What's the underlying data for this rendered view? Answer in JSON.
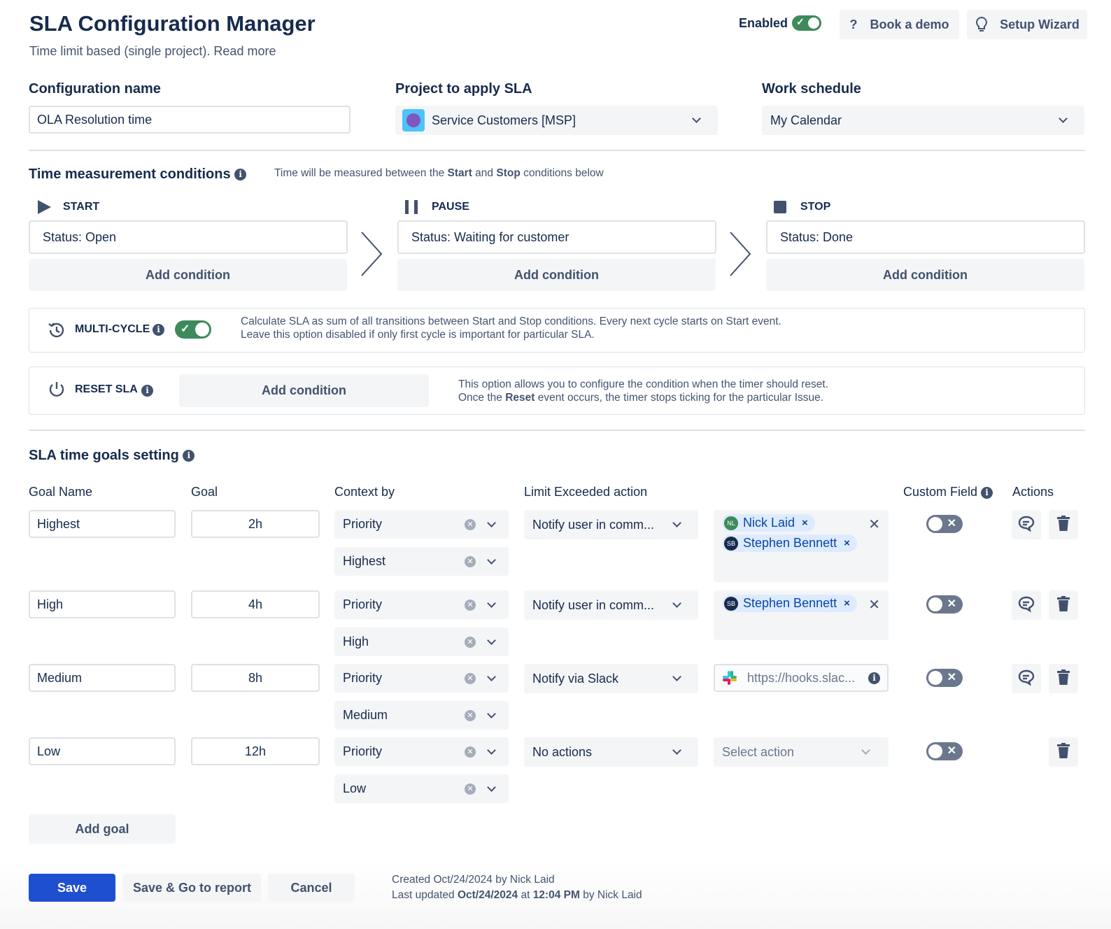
{
  "header": {
    "title": "SLA Configuration Manager",
    "subtitle": "Time limit based (single project). Read more",
    "enabled_label": "Enabled",
    "enabled": true,
    "book_demo": "Book a demo",
    "setup_wizard": "Setup Wizard"
  },
  "config": {
    "name_label": "Configuration name",
    "name_value": "OLA Resolution time",
    "project_label": "Project to apply SLA",
    "project_value": "Service Customers [MSP]",
    "schedule_label": "Work schedule",
    "schedule_value": "My Calendar"
  },
  "time": {
    "title": "Time measurement conditions",
    "hint_pre": "Time will be measured between the ",
    "hint_start": "Start",
    "hint_mid": " and ",
    "hint_stop": "Stop",
    "hint_post": " conditions below",
    "start_label": "START",
    "start_value": "Status: Open",
    "pause_label": "PAUSE",
    "pause_value": "Status: Waiting for customer",
    "stop_label": "STOP",
    "stop_value": "Status: Done",
    "add_condition": "Add condition"
  },
  "multicycle": {
    "label": "MULTI-CYCLE",
    "enabled": true,
    "line1": "Calculate SLA as sum of all transitions between Start and Stop conditions. Every next cycle starts on Start event.",
    "line2": "Leave this option disabled if only first cycle is important for particular SLA."
  },
  "reset": {
    "label": "RESET SLA",
    "add_condition": "Add condition",
    "line1": "This option allows you to configure the condition when the timer should reset.",
    "line2_pre": "Once the ",
    "line2_bold": "Reset",
    "line2_post": " event occurs, the timer stops ticking for the particular Issue."
  },
  "goals": {
    "title": "SLA time goals setting",
    "headers": {
      "name": "Goal Name",
      "goal": "Goal",
      "context": "Context by",
      "limit": "Limit Exceeded action",
      "custom": "Custom Field",
      "actions": "Actions"
    },
    "rows": [
      {
        "name": "Highest",
        "goal": "2h",
        "context": "Priority",
        "context_value": "Highest",
        "action": "Notify user in comm...",
        "recipients": [
          {
            "initials": "NL",
            "name": "Nick Laid",
            "color": "#3d8a5b"
          },
          {
            "initials": "SB",
            "name": "Stephen Bennett",
            "color": "#172b4d"
          }
        ],
        "custom_field": false,
        "has_comment": true
      },
      {
        "name": "High",
        "goal": "4h",
        "context": "Priority",
        "context_value": "High",
        "action": "Notify user in comm...",
        "recipients": [
          {
            "initials": "SB",
            "name": "Stephen Bennett",
            "color": "#172b4d"
          }
        ],
        "custom_field": false,
        "has_comment": true
      },
      {
        "name": "Medium",
        "goal": "8h",
        "context": "Priority",
        "context_value": "Medium",
        "action": "Notify via Slack",
        "webhook": "https://hooks.slac...",
        "custom_field": false,
        "has_comment": true
      },
      {
        "name": "Low",
        "goal": "12h",
        "context": "Priority",
        "context_value": "Low",
        "action": "No actions",
        "select_placeholder": "Select action",
        "custom_field": false,
        "has_comment": false
      }
    ],
    "add_goal": "Add goal"
  },
  "footer": {
    "save": "Save",
    "save_report": "Save & Go to report",
    "cancel": "Cancel",
    "created": "Created Oct/24/2024 by Nick Laid",
    "updated_pre": "Last updated ",
    "updated_date": "Oct/24/2024",
    "updated_mid": " at ",
    "updated_time": "12:04 PM",
    "updated_post": " by Nick Laid"
  },
  "colors": {
    "primary": "#1f4fd1",
    "toggle_on": "#3d8a5b",
    "toggle_off": "#6b778c",
    "chip": "#deebff"
  }
}
